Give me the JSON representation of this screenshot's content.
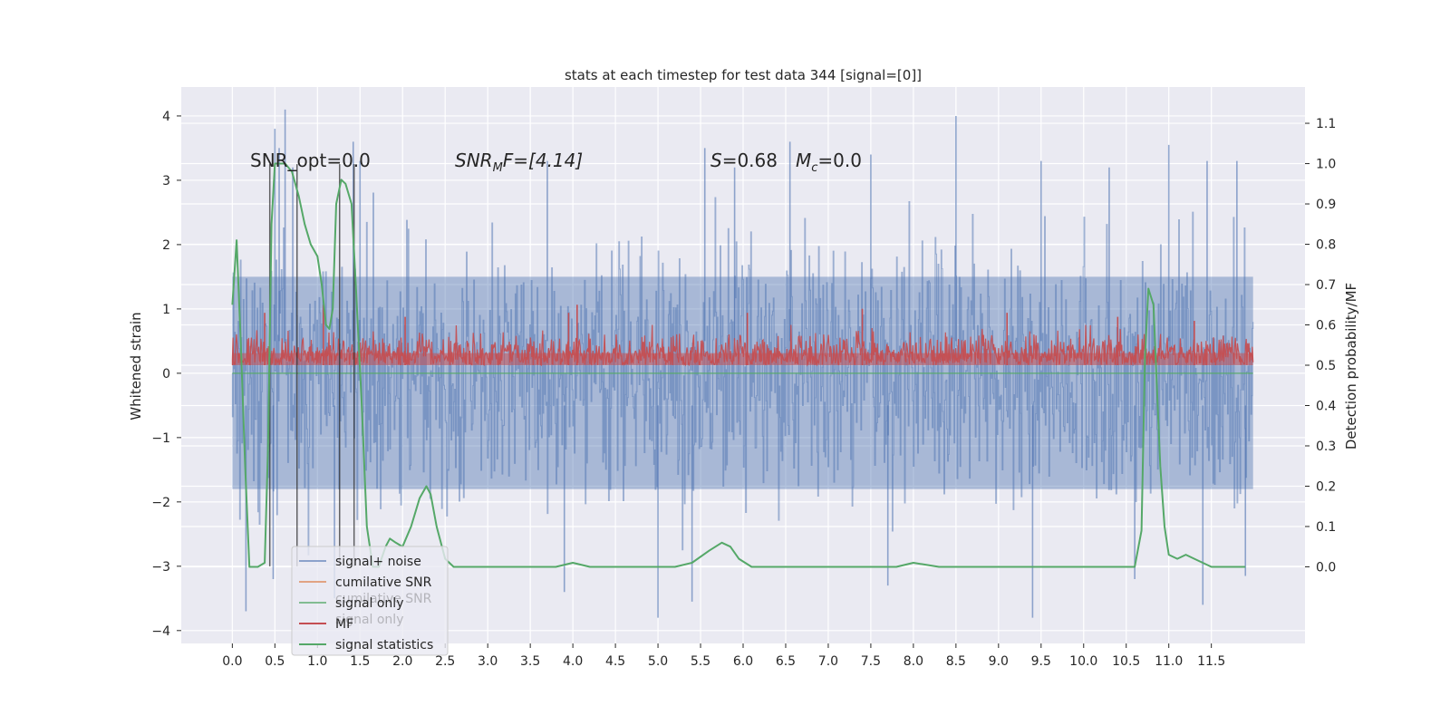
{
  "chart_data": {
    "type": "line",
    "title": "stats at each timestep for test data 344 [signal=[0]]",
    "xlabel": "",
    "ylabel_left": "Whitened strain",
    "ylabel_right": "Detection probability/MF",
    "xlim": [
      -0.6,
      12.6
    ],
    "ylim_left": [
      -4.2,
      4.45
    ],
    "ylim_right": [
      -0.19,
      1.19
    ],
    "x_ticks": [
      0.0,
      0.5,
      1.0,
      1.5,
      2.0,
      2.5,
      3.0,
      3.5,
      4.0,
      4.5,
      5.0,
      5.5,
      6.0,
      6.5,
      7.0,
      7.5,
      8.0,
      8.5,
      9.0,
      9.5,
      10.0,
      10.5,
      11.0,
      11.5
    ],
    "x_tick_labels": [
      "0.0",
      "0.5",
      "1.0",
      "1.5",
      "2.0",
      "2.5",
      "3.0",
      "3.5",
      "4.0",
      "4.5",
      "5.0",
      "5.5",
      "6.0",
      "6.5",
      "7.0",
      "7.5",
      "8.0",
      "8.5",
      "9.0",
      "9.5",
      "10.0",
      "10.5",
      "11.0",
      "11.5"
    ],
    "y_left_ticks": [
      4,
      3,
      2,
      1,
      0,
      -1,
      -2,
      -3,
      -4
    ],
    "y_left_tick_labels": [
      "4",
      "3",
      "2",
      "1",
      "0",
      "−1",
      "−2",
      "−3",
      "−4"
    ],
    "y_right_ticks": [
      1.1,
      1.0,
      0.9,
      0.8,
      0.7,
      0.6,
      0.5,
      0.4,
      0.3,
      0.2,
      0.1,
      0.0
    ],
    "y_right_tick_labels": [
      "1.1",
      "1.0",
      "0.9",
      "0.8",
      "0.7",
      "0.6",
      "0.5",
      "0.4",
      "0.3",
      "0.2",
      "0.1",
      "0.0"
    ],
    "grid": true,
    "annotations": {
      "snr_opt": "SNR_opt=0.0",
      "snr_mf_italic": "SNR",
      "snr_mf_sub": "M",
      "snr_mf_rest": "F=[4.14]",
      "s_italic": "S",
      "s_rest": "=0.68",
      "mc_italic": "M",
      "mc_sub": "c",
      "mc_rest": "=0.0"
    },
    "vertical_markers_x": [
      0.44,
      0.76,
      1.26,
      1.43
    ],
    "signal_noise": {
      "name": "signal+ noise",
      "color": "#4c72b0",
      "x_range": [
        0.0,
        11.99
      ],
      "typical_range": [
        -1.8,
        1.5
      ],
      "peaks": [
        {
          "x": 0.5,
          "y": 3.8
        },
        {
          "x": 0.55,
          "y": 3.5
        },
        {
          "x": 0.62,
          "y": 4.1
        },
        {
          "x": 0.71,
          "y": 3.2
        },
        {
          "x": 1.42,
          "y": 3.6
        },
        {
          "x": 1.5,
          "y": 3.3
        },
        {
          "x": 3.7,
          "y": 3.3
        },
        {
          "x": 5.55,
          "y": 3.5
        },
        {
          "x": 5.9,
          "y": 3.2
        },
        {
          "x": 6.55,
          "y": 3.6
        },
        {
          "x": 7.5,
          "y": 3.4
        },
        {
          "x": 8.5,
          "y": 4.0
        },
        {
          "x": 9.5,
          "y": 3.3
        },
        {
          "x": 10.3,
          "y": 3.2
        },
        {
          "x": 11.0,
          "y": 3.55
        },
        {
          "x": 11.45,
          "y": 3.3
        },
        {
          "x": 11.8,
          "y": 3.3
        }
      ],
      "troughs": [
        {
          "x": 0.16,
          "y": -3.7
        },
        {
          "x": 0.48,
          "y": -3.2
        },
        {
          "x": 1.2,
          "y": -3.5
        },
        {
          "x": 3.9,
          "y": -3.4
        },
        {
          "x": 5.0,
          "y": -3.8
        },
        {
          "x": 5.4,
          "y": -3.55
        },
        {
          "x": 7.7,
          "y": -3.3
        },
        {
          "x": 9.4,
          "y": -3.8
        },
        {
          "x": 10.6,
          "y": -3.2
        },
        {
          "x": 11.4,
          "y": -3.6
        },
        {
          "x": 11.9,
          "y": -3.15
        }
      ]
    },
    "mf": {
      "name": "MF",
      "color": "#c44e52",
      "axis": "right",
      "baseline": 0.5,
      "typical_range": [
        0.5,
        0.6
      ],
      "peaks": [
        {
          "x": 0.38,
          "y": 0.63
        },
        {
          "x": 1.07,
          "y": 0.65
        },
        {
          "x": 2.03,
          "y": 0.62
        },
        {
          "x": 3.95,
          "y": 0.63
        },
        {
          "x": 4.05,
          "y": 0.65
        },
        {
          "x": 6.05,
          "y": 0.63
        },
        {
          "x": 7.4,
          "y": 0.64
        },
        {
          "x": 9.1,
          "y": 0.63
        },
        {
          "x": 10.4,
          "y": 0.62
        },
        {
          "x": 11.3,
          "y": 0.61
        }
      ]
    },
    "signal_only": {
      "name": "signal only",
      "color": "#55a868",
      "value": 0.0
    },
    "signal_statistics": {
      "name": "signal statistics",
      "color": "#55a868",
      "axis": "right",
      "x": [
        0.0,
        0.05,
        0.1,
        0.15,
        0.2,
        0.25,
        0.3,
        0.38,
        0.42,
        0.46,
        0.5,
        0.55,
        0.62,
        0.7,
        0.78,
        0.85,
        0.92,
        1.0,
        1.05,
        1.1,
        1.14,
        1.18,
        1.22,
        1.28,
        1.33,
        1.4,
        1.45,
        1.52,
        1.58,
        1.65,
        1.72,
        1.8,
        1.85,
        1.92,
        2.0,
        2.1,
        2.2,
        2.28,
        2.33,
        2.4,
        2.5,
        2.6,
        2.8,
        3.0,
        3.3,
        3.6,
        3.8,
        4.0,
        4.2,
        4.5,
        4.8,
        5.0,
        5.2,
        5.4,
        5.6,
        5.75,
        5.85,
        5.95,
        6.1,
        6.3,
        6.5,
        6.7,
        6.9,
        7.2,
        7.5,
        7.8,
        8.0,
        8.3,
        8.6,
        9.0,
        9.4,
        9.8,
        10.0,
        10.2,
        10.4,
        10.6,
        10.68,
        10.72,
        10.76,
        10.82,
        10.86,
        10.9,
        10.95,
        11.0,
        11.1,
        11.2,
        11.3,
        11.5,
        11.7,
        11.9
      ],
      "y": [
        0.65,
        0.81,
        0.55,
        0.25,
        0.0,
        0.0,
        0.0,
        0.01,
        0.3,
        0.85,
        1.0,
        1.0,
        1.0,
        0.98,
        0.92,
        0.85,
        0.8,
        0.77,
        0.7,
        0.6,
        0.59,
        0.64,
        0.9,
        0.96,
        0.95,
        0.9,
        0.7,
        0.4,
        0.1,
        0.0,
        0.0,
        0.05,
        0.07,
        0.06,
        0.05,
        0.1,
        0.17,
        0.2,
        0.18,
        0.1,
        0.02,
        0.0,
        0.0,
        0.0,
        0.0,
        0.0,
        0.0,
        0.01,
        0.0,
        0.0,
        0.0,
        0.0,
        0.0,
        0.01,
        0.04,
        0.06,
        0.05,
        0.02,
        0.0,
        0.0,
        0.0,
        0.0,
        0.0,
        0.0,
        0.0,
        0.0,
        0.01,
        0.0,
        0.0,
        0.0,
        0.0,
        0.0,
        0.0,
        0.0,
        0.0,
        0.0,
        0.09,
        0.52,
        0.69,
        0.65,
        0.45,
        0.25,
        0.1,
        0.03,
        0.02,
        0.03,
        0.02,
        0.0,
        0.0,
        0.0
      ]
    },
    "legend": {
      "location": "lower-left",
      "entries": [
        {
          "name": "signal+ noise",
          "color": "#4c72b0"
        },
        {
          "name": "cumilative SNR",
          "color": "#dd8452"
        },
        {
          "name": "signal only",
          "color": "#55a868"
        },
        {
          "name": "MF",
          "color": "#c44e52"
        },
        {
          "name": "signal statistics",
          "color": "#55a868"
        }
      ],
      "ghost_entries": [
        "cumilative SNR",
        "signal only"
      ]
    }
  }
}
